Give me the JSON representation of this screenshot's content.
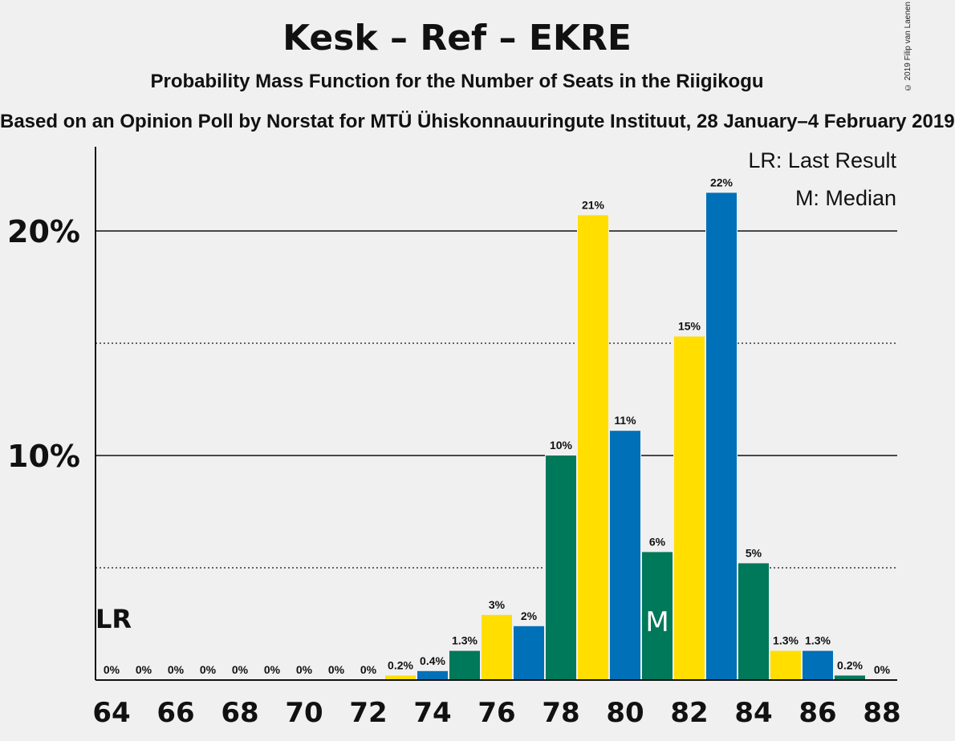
{
  "header": {
    "title": "Kesk – Ref – EKRE",
    "subtitle": "Probability Mass Function for the Number of Seats in the Riigikogu",
    "source": "Based on an Opinion Poll by Norstat for MTÜ Ühiskonnauuringute Instituut, 28 January–4 February 2019",
    "copyright": "© 2019 Filip van Laenen"
  },
  "colors": {
    "green": "#00785a",
    "yellow": "#ffde00",
    "blue": "#0070b8",
    "background": "#f0f0f0",
    "text": "#111111"
  },
  "chart_data": {
    "type": "bar",
    "x": [
      64,
      65,
      66,
      67,
      68,
      69,
      70,
      71,
      72,
      73,
      74,
      75,
      76,
      77,
      78,
      79,
      80,
      81,
      82,
      83,
      84,
      85,
      86,
      87,
      88
    ],
    "values": [
      0,
      0,
      0,
      0,
      0,
      0,
      0,
      0,
      0,
      0.2,
      0.4,
      1.3,
      2.9,
      2.4,
      10.0,
      20.7,
      11.1,
      5.7,
      15.3,
      21.7,
      5.2,
      1.3,
      1.3,
      0.2,
      0
    ],
    "data_labels": [
      "0%",
      "0%",
      "0%",
      "0%",
      "0%",
      "0%",
      "0%",
      "0%",
      "0%",
      "0.2%",
      "0.4%",
      "1.3%",
      "3%",
      "2%",
      "10%",
      "21%",
      "11%",
      "6%",
      "15%",
      "22%",
      "5%",
      "1.3%",
      "1.3%",
      "0.2%",
      "0%"
    ],
    "bar_colors": [
      "green",
      "yellow",
      "blue",
      "green",
      "yellow",
      "blue",
      "green",
      "yellow",
      "blue",
      "yellow",
      "blue",
      "green",
      "yellow",
      "blue",
      "green",
      "yellow",
      "blue",
      "green",
      "yellow",
      "blue",
      "green",
      "yellow",
      "blue",
      "green",
      "yellow"
    ],
    "x_tick_labels": [
      "64",
      "66",
      "68",
      "70",
      "72",
      "74",
      "76",
      "78",
      "80",
      "82",
      "84",
      "86",
      "88"
    ],
    "y_tick_labels": [
      {
        "value": 10,
        "label": "10%"
      },
      {
        "value": 20,
        "label": "20%"
      }
    ],
    "y_dotted_lines": [
      5,
      15
    ],
    "ylim": [
      0,
      23.7
    ],
    "xlim": [
      63.5,
      88.5
    ],
    "last_result": {
      "seat": 64,
      "label": "LR"
    },
    "median": {
      "seat": 81,
      "label": "M"
    },
    "legend": {
      "position": "top-right",
      "items": [
        "LR: Last Result",
        "M: Median"
      ]
    }
  }
}
